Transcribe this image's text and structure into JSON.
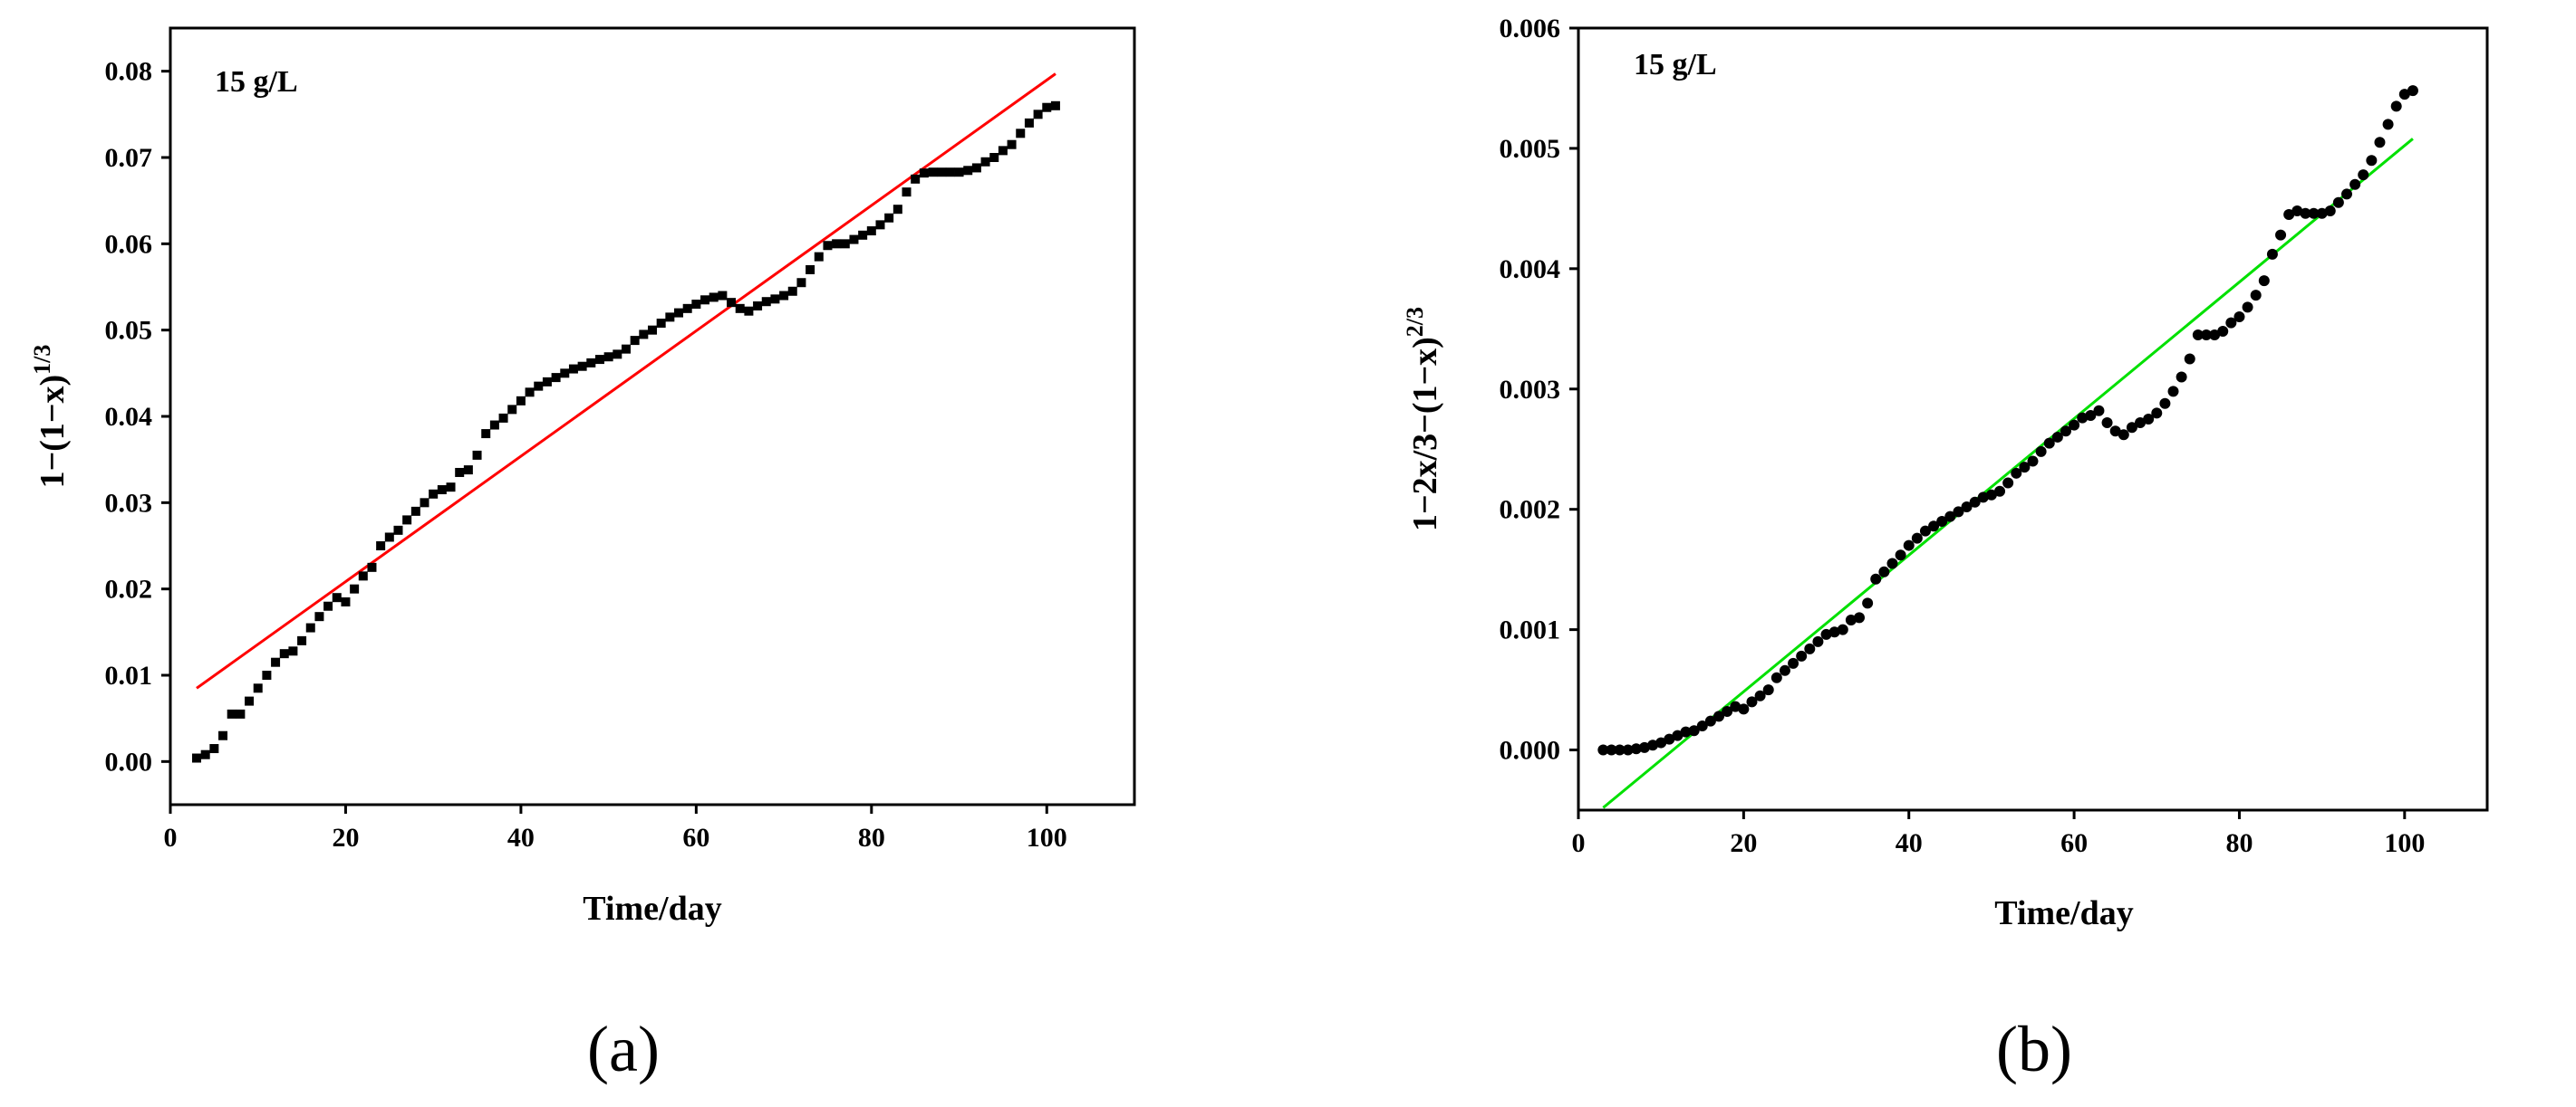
{
  "chart_data": [
    {
      "type": "scatter",
      "panel_label": "(a)",
      "annotation": "15 g/L",
      "xlabel": "Time/day",
      "ylabel": "1−(1−x)",
      "ylabel_sup": "1/3",
      "xlim": [
        0,
        110
      ],
      "ylim": [
        -0.005,
        0.085
      ],
      "xticks": [
        0,
        20,
        40,
        60,
        80,
        100
      ],
      "xtick_labels": [
        "0",
        "20",
        "40",
        "60",
        "80",
        "100"
      ],
      "yticks": [
        0,
        0.01,
        0.02,
        0.03,
        0.04,
        0.05,
        0.06,
        0.07,
        0.08
      ],
      "ytick_labels": [
        "0.00",
        "0.01",
        "0.02",
        "0.03",
        "0.04",
        "0.05",
        "0.06",
        "0.07",
        "0.08"
      ],
      "grid": false,
      "marker": "square",
      "marker_color": "#000000",
      "fit_color": "#ff0000",
      "fit_line": {
        "x": [
          3,
          101
        ],
        "y": [
          0.0085,
          0.0797
        ]
      },
      "points": {
        "x": [
          3,
          4,
          5,
          6,
          7,
          8,
          9,
          10,
          11,
          12,
          13,
          14,
          15,
          16,
          17,
          18,
          19,
          20,
          21,
          22,
          23,
          24,
          25,
          26,
          27,
          28,
          29,
          30,
          31,
          32,
          33,
          34,
          35,
          36,
          37,
          38,
          39,
          40,
          41,
          42,
          43,
          44,
          45,
          46,
          47,
          48,
          49,
          50,
          51,
          52,
          53,
          54,
          55,
          56,
          57,
          58,
          59,
          60,
          61,
          62,
          63,
          64,
          65,
          66,
          67,
          68,
          69,
          70,
          71,
          72,
          73,
          74,
          75,
          76,
          77,
          78,
          79,
          80,
          81,
          82,
          83,
          84,
          85,
          86,
          87,
          88,
          89,
          90,
          91,
          92,
          93,
          94,
          95,
          96,
          97,
          98,
          99,
          100,
          101
        ],
        "y": [
          0.0004,
          0.0008,
          0.0015,
          0.003,
          0.0055,
          0.0055,
          0.007,
          0.0085,
          0.01,
          0.0115,
          0.0125,
          0.0128,
          0.014,
          0.0155,
          0.0168,
          0.018,
          0.019,
          0.0185,
          0.02,
          0.0215,
          0.0225,
          0.025,
          0.026,
          0.0268,
          0.028,
          0.029,
          0.03,
          0.031,
          0.0315,
          0.0318,
          0.0335,
          0.0338,
          0.0355,
          0.038,
          0.039,
          0.0398,
          0.0408,
          0.0418,
          0.0428,
          0.0435,
          0.044,
          0.0445,
          0.045,
          0.0455,
          0.0458,
          0.0462,
          0.0466,
          0.0469,
          0.0472,
          0.0478,
          0.0488,
          0.0495,
          0.05,
          0.0508,
          0.0515,
          0.052,
          0.0525,
          0.053,
          0.0535,
          0.0538,
          0.054,
          0.0532,
          0.0525,
          0.0522,
          0.0528,
          0.0533,
          0.0536,
          0.054,
          0.0545,
          0.0555,
          0.057,
          0.0585,
          0.0598,
          0.06,
          0.06,
          0.0605,
          0.061,
          0.0615,
          0.0622,
          0.063,
          0.064,
          0.066,
          0.0675,
          0.0682,
          0.0683,
          0.0683,
          0.0683,
          0.0683,
          0.0685,
          0.0688,
          0.0695,
          0.07,
          0.0708,
          0.0715,
          0.0728,
          0.074,
          0.075,
          0.0758,
          0.076
        ]
      }
    },
    {
      "type": "scatter",
      "panel_label": "(b)",
      "annotation": "15 g/L",
      "xlabel": "Time/day",
      "ylabel": "1−2x/3−(1−x)",
      "ylabel_sup": "2/3",
      "xlim": [
        0,
        110
      ],
      "ylim": [
        -0.0005,
        0.006
      ],
      "xticks": [
        0,
        20,
        40,
        60,
        80,
        100
      ],
      "xtick_labels": [
        "0",
        "20",
        "40",
        "60",
        "80",
        "100"
      ],
      "yticks": [
        0,
        0.001,
        0.002,
        0.003,
        0.004,
        0.005,
        0.006
      ],
      "ytick_labels": [
        "0.000",
        "0.001",
        "0.002",
        "0.003",
        "0.004",
        "0.005",
        "0.006"
      ],
      "grid": false,
      "marker": "circle",
      "marker_color": "#000000",
      "fit_color": "#00e000",
      "fit_line": {
        "x": [
          3,
          101
        ],
        "y": [
          -0.00048,
          0.00508
        ]
      },
      "points": {
        "x": [
          3,
          4,
          5,
          6,
          7,
          8,
          9,
          10,
          11,
          12,
          13,
          14,
          15,
          16,
          17,
          18,
          19,
          20,
          21,
          22,
          23,
          24,
          25,
          26,
          27,
          28,
          29,
          30,
          31,
          32,
          33,
          34,
          35,
          36,
          37,
          38,
          39,
          40,
          41,
          42,
          43,
          44,
          45,
          46,
          47,
          48,
          49,
          50,
          51,
          52,
          53,
          54,
          55,
          56,
          57,
          58,
          59,
          60,
          61,
          62,
          63,
          64,
          65,
          66,
          67,
          68,
          69,
          70,
          71,
          72,
          73,
          74,
          75,
          76,
          77,
          78,
          79,
          80,
          81,
          82,
          83,
          84,
          85,
          86,
          87,
          88,
          89,
          90,
          91,
          92,
          93,
          94,
          95,
          96,
          97,
          98,
          99,
          100,
          101
        ],
        "y": [
          0.0,
          0.0,
          0.0,
          0.0,
          1e-05,
          2e-05,
          4e-05,
          6e-05,
          9e-05,
          0.00012,
          0.00015,
          0.00016,
          0.0002,
          0.00024,
          0.00028,
          0.00032,
          0.00036,
          0.00034,
          0.0004,
          0.00045,
          0.0005,
          0.0006,
          0.00066,
          0.00072,
          0.00078,
          0.00084,
          0.0009,
          0.00096,
          0.00098,
          0.001,
          0.00108,
          0.0011,
          0.00122,
          0.00142,
          0.00148,
          0.00155,
          0.00162,
          0.0017,
          0.00176,
          0.00182,
          0.00186,
          0.0019,
          0.00194,
          0.00198,
          0.00202,
          0.00206,
          0.0021,
          0.00212,
          0.00215,
          0.00222,
          0.0023,
          0.00235,
          0.0024,
          0.00248,
          0.00255,
          0.0026,
          0.00265,
          0.0027,
          0.00276,
          0.00278,
          0.00282,
          0.00272,
          0.00265,
          0.00262,
          0.00268,
          0.00272,
          0.00275,
          0.0028,
          0.00288,
          0.00298,
          0.0031,
          0.00325,
          0.00345,
          0.00345,
          0.00345,
          0.00348,
          0.00355,
          0.0036,
          0.00368,
          0.00378,
          0.0039,
          0.00412,
          0.00428,
          0.00445,
          0.00448,
          0.00446,
          0.00446,
          0.00446,
          0.00448,
          0.00455,
          0.00462,
          0.0047,
          0.00478,
          0.0049,
          0.00505,
          0.0052,
          0.00535,
          0.00545,
          0.00548
        ]
      }
    }
  ]
}
